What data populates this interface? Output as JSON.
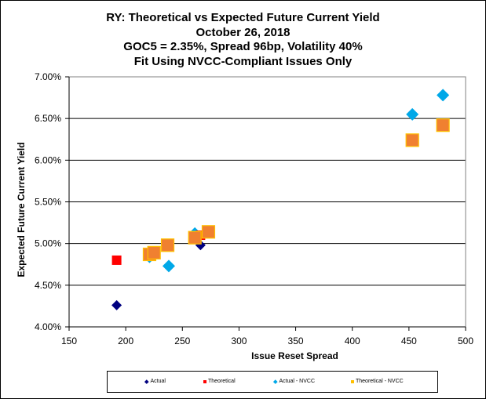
{
  "chart_data": {
    "type": "scatter",
    "title": [
      "RY: Theoretical vs Expected Future Current Yield",
      "October 26, 2018",
      "GOC5 = 2.35%, Spread 96bp, Volatility 40%",
      "Fit Using NVCC-Compliant Issues Only"
    ],
    "xlabel": "Issue Reset Spread",
    "ylabel": "Expected Future Current Yield",
    "xlim": [
      150,
      500
    ],
    "ylim": [
      4.0,
      7.0
    ],
    "xticks": [
      150,
      200,
      250,
      300,
      350,
      400,
      450,
      500
    ],
    "xtick_labels": [
      "150",
      "200",
      "250",
      "300",
      "350",
      "400",
      "450",
      "500"
    ],
    "yticks": [
      4.0,
      4.5,
      5.0,
      5.5,
      6.0,
      6.5,
      7.0
    ],
    "ytick_labels": [
      "4.00%",
      "4.50%",
      "5.00%",
      "5.50%",
      "6.00%",
      "6.50%",
      "7.00%"
    ],
    "grid": "horizontal",
    "legend_position": "bottom",
    "series": [
      {
        "name": "Actual",
        "marker": "diamond",
        "color": "#000080",
        "points": [
          [
            192,
            4.26
          ],
          [
            266,
            4.98
          ]
        ]
      },
      {
        "name": "Theoretical",
        "marker": "square",
        "color": "#ff0000",
        "points": [
          [
            192,
            4.8
          ],
          [
            266,
            5.1
          ]
        ]
      },
      {
        "name": "Actual - NVCC",
        "marker": "diamond",
        "color": "#00a8e8",
        "points": [
          [
            221,
            4.84
          ],
          [
            238,
            4.73
          ],
          [
            261,
            5.12
          ],
          [
            453,
            6.55
          ],
          [
            480,
            6.78
          ]
        ]
      },
      {
        "name": "Theoretical - NVCC",
        "marker": "square",
        "color": "#f08030",
        "edge_color": "#ffc000",
        "points": [
          [
            221,
            4.87
          ],
          [
            225,
            4.89
          ],
          [
            237,
            4.98
          ],
          [
            261,
            5.07
          ],
          [
            273,
            5.14
          ],
          [
            453,
            6.24
          ],
          [
            480,
            6.42
          ]
        ]
      }
    ]
  }
}
